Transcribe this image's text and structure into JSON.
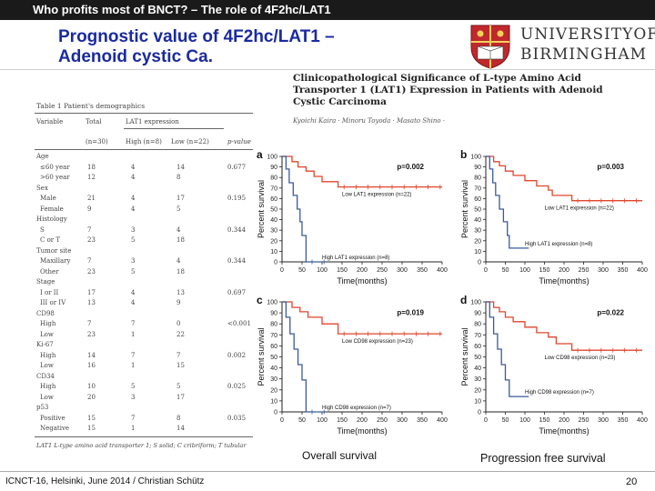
{
  "header": {
    "bar_title": "Who profits most of BNCT? – The role of 4F2hc/LAT1",
    "title_line1": "Prognostic value of 4F2hc/LAT1 –",
    "title_line2": "Adenoid cystic Ca.",
    "university_line1": "UNIVERSITYOF",
    "university_line2": "BIRMINGHAM"
  },
  "paper": {
    "title_line1": "Clinicopathological Significance of L-type Amino Acid",
    "title_line2": "Transporter 1 (LAT1) Expression in Patients with Adenoid",
    "title_line3": "Cystic Carcinoma",
    "authors": "Kyoichi Kaira · Minoru Toyoda · Masato Shino ·"
  },
  "table": {
    "title": "Table 1 Patient's demographics",
    "headers": [
      "Variable",
      "Total",
      "LAT1 expression",
      "p-value"
    ],
    "subheaders": [
      "(n=30)",
      "High (n=8)",
      "Low (n=22)"
    ],
    "rows": [
      {
        "v": "Age",
        "t": "",
        "h": "",
        "l": "",
        "p": ""
      },
      {
        "v": "≤60 year",
        "t": "18",
        "h": "4",
        "l": "14",
        "p": "0.677"
      },
      {
        "v": ">60 year",
        "t": "12",
        "h": "4",
        "l": "8",
        "p": ""
      },
      {
        "v": "Sex",
        "t": "",
        "h": "",
        "l": "",
        "p": ""
      },
      {
        "v": "Male",
        "t": "21",
        "h": "4",
        "l": "17",
        "p": "0.195"
      },
      {
        "v": "Female",
        "t": "9",
        "h": "4",
        "l": "5",
        "p": ""
      },
      {
        "v": "Histology",
        "t": "",
        "h": "",
        "l": "",
        "p": ""
      },
      {
        "v": "S",
        "t": "7",
        "h": "3",
        "l": "4",
        "p": "0.344"
      },
      {
        "v": "C or T",
        "t": "23",
        "h": "5",
        "l": "18",
        "p": ""
      },
      {
        "v": "Tumor site",
        "t": "",
        "h": "",
        "l": "",
        "p": ""
      },
      {
        "v": "Maxillary",
        "t": "7",
        "h": "3",
        "l": "4",
        "p": "0.344"
      },
      {
        "v": "Other",
        "t": "23",
        "h": "5",
        "l": "18",
        "p": ""
      },
      {
        "v": "Stage",
        "t": "",
        "h": "",
        "l": "",
        "p": ""
      },
      {
        "v": "I or II",
        "t": "17",
        "h": "4",
        "l": "13",
        "p": "0.697"
      },
      {
        "v": "III or IV",
        "t": "13",
        "h": "4",
        "l": "9",
        "p": ""
      },
      {
        "v": "CD98",
        "t": "",
        "h": "",
        "l": "",
        "p": ""
      },
      {
        "v": "High",
        "t": "7",
        "h": "7",
        "l": "0",
        "p": "<0.001"
      },
      {
        "v": "Low",
        "t": "23",
        "h": "1",
        "l": "22",
        "p": ""
      },
      {
        "v": "Ki-67",
        "t": "",
        "h": "",
        "l": "",
        "p": ""
      },
      {
        "v": "High",
        "t": "14",
        "h": "7",
        "l": "7",
        "p": "0.002"
      },
      {
        "v": "Low",
        "t": "16",
        "h": "1",
        "l": "15",
        "p": ""
      },
      {
        "v": "CD34",
        "t": "",
        "h": "",
        "l": "",
        "p": ""
      },
      {
        "v": "High",
        "t": "10",
        "h": "5",
        "l": "5",
        "p": "0.025"
      },
      {
        "v": "Low",
        "t": "20",
        "h": "3",
        "l": "17",
        "p": ""
      },
      {
        "v": "p53",
        "t": "",
        "h": "",
        "l": "",
        "p": ""
      },
      {
        "v": "Positive",
        "t": "15",
        "h": "7",
        "l": "8",
        "p": "0.035"
      },
      {
        "v": "Negative",
        "t": "15",
        "h": "1",
        "l": "14",
        "p": ""
      }
    ],
    "footnote": "LAT1 L-type amino acid transporter 1; S solid; C cribriform; T tubular"
  },
  "labels": {
    "overall": "Overall survival",
    "progression": "Progression free survival"
  },
  "footer": {
    "text": "ICNCT-16, Helsinki, June 2014 / Christian Schütz",
    "page": "20"
  },
  "colors": {
    "title_blue": "#1a2aa0",
    "low_curve": "#e0452c",
    "high_curve": "#3a5a9a",
    "crest_red": "#c0282d"
  },
  "chart_data": [
    {
      "type": "line",
      "panel": "a",
      "xlabel": "Time(months)",
      "ylabel": "Percent survival",
      "xlim": [
        0,
        400
      ],
      "ylim": [
        0,
        100
      ],
      "xticks": [
        0,
        50,
        100,
        150,
        200,
        250,
        300,
        350,
        400
      ],
      "yticks": [
        0,
        10,
        20,
        30,
        40,
        50,
        60,
        70,
        80,
        90,
        100
      ],
      "pvalue": "p=0.002",
      "series": [
        {
          "name": "Low LAT1 expression (n=22)",
          "points": [
            [
              0,
              100
            ],
            [
              25,
              100
            ],
            [
              25,
              95
            ],
            [
              40,
              95
            ],
            [
              40,
              90
            ],
            [
              60,
              90
            ],
            [
              60,
              86
            ],
            [
              80,
              86
            ],
            [
              80,
              81
            ],
            [
              100,
              81
            ],
            [
              100,
              76
            ],
            [
              140,
              76
            ],
            [
              140,
              71
            ],
            [
              400,
              71
            ]
          ]
        },
        {
          "name": "High LAT1 expression (n=8)",
          "points": [
            [
              0,
              100
            ],
            [
              10,
              100
            ],
            [
              10,
              88
            ],
            [
              18,
              88
            ],
            [
              18,
              75
            ],
            [
              28,
              75
            ],
            [
              28,
              63
            ],
            [
              38,
              63
            ],
            [
              38,
              50
            ],
            [
              45,
              50
            ],
            [
              45,
              38
            ],
            [
              50,
              38
            ],
            [
              50,
              25
            ],
            [
              60,
              25
            ],
            [
              60,
              13
            ],
            [
              60,
              0
            ],
            [
              110,
              0
            ]
          ]
        }
      ]
    },
    {
      "type": "line",
      "panel": "b",
      "xlabel": "Time(months)",
      "ylabel": "Percent survival",
      "xlim": [
        0,
        400
      ],
      "ylim": [
        0,
        100
      ],
      "xticks": [
        0,
        50,
        100,
        150,
        200,
        250,
        300,
        350,
        400
      ],
      "yticks": [
        0,
        10,
        20,
        30,
        40,
        50,
        60,
        70,
        80,
        90,
        100
      ],
      "pvalue": "p=0.003",
      "series": [
        {
          "name": "Low LAT1 expression (n=22)",
          "points": [
            [
              0,
              100
            ],
            [
              20,
              100
            ],
            [
              20,
              95
            ],
            [
              35,
              95
            ],
            [
              35,
              91
            ],
            [
              50,
              91
            ],
            [
              50,
              86
            ],
            [
              70,
              86
            ],
            [
              70,
              82
            ],
            [
              100,
              82
            ],
            [
              100,
              77
            ],
            [
              130,
              77
            ],
            [
              130,
              72
            ],
            [
              160,
              72
            ],
            [
              160,
              68
            ],
            [
              170,
              68
            ],
            [
              170,
              63
            ],
            [
              220,
              63
            ],
            [
              220,
              58
            ],
            [
              400,
              58
            ]
          ]
        },
        {
          "name": "High LAT1 expression (n=8)",
          "points": [
            [
              0,
              100
            ],
            [
              10,
              100
            ],
            [
              10,
              88
            ],
            [
              18,
              88
            ],
            [
              18,
              75
            ],
            [
              25,
              75
            ],
            [
              25,
              63
            ],
            [
              35,
              63
            ],
            [
              35,
              50
            ],
            [
              45,
              50
            ],
            [
              45,
              38
            ],
            [
              55,
              38
            ],
            [
              55,
              25
            ],
            [
              60,
              25
            ],
            [
              60,
              13
            ],
            [
              110,
              13
            ],
            [
              110,
              13
            ]
          ]
        }
      ]
    },
    {
      "type": "line",
      "panel": "c",
      "xlabel": "Time(months)",
      "ylabel": "Percent survival",
      "xlim": [
        0,
        400
      ],
      "ylim": [
        0,
        100
      ],
      "xticks": [
        0,
        50,
        100,
        150,
        200,
        250,
        300,
        350,
        400
      ],
      "yticks": [
        0,
        10,
        20,
        30,
        40,
        50,
        60,
        70,
        80,
        90,
        100
      ],
      "pvalue": "p=0.019",
      "series": [
        {
          "name": "Low CD98 expression (n=23)",
          "points": [
            [
              0,
              100
            ],
            [
              25,
              100
            ],
            [
              25,
              95
            ],
            [
              45,
              95
            ],
            [
              45,
              91
            ],
            [
              65,
              91
            ],
            [
              65,
              86
            ],
            [
              100,
              86
            ],
            [
              100,
              80
            ],
            [
              140,
              80
            ],
            [
              140,
              71
            ],
            [
              400,
              71
            ]
          ]
        },
        {
          "name": "High CD98 expression (n=7)",
          "points": [
            [
              0,
              100
            ],
            [
              10,
              100
            ],
            [
              10,
              86
            ],
            [
              20,
              86
            ],
            [
              20,
              71
            ],
            [
              30,
              71
            ],
            [
              30,
              57
            ],
            [
              40,
              57
            ],
            [
              40,
              43
            ],
            [
              50,
              43
            ],
            [
              50,
              29
            ],
            [
              60,
              29
            ],
            [
              60,
              15
            ],
            [
              60,
              0
            ],
            [
              110,
              0
            ]
          ]
        }
      ]
    },
    {
      "type": "line",
      "panel": "d",
      "xlabel": "Time(months)",
      "ylabel": "Percent survival",
      "xlim": [
        0,
        400
      ],
      "ylim": [
        0,
        100
      ],
      "xticks": [
        0,
        50,
        100,
        150,
        200,
        250,
        300,
        350,
        400
      ],
      "yticks": [
        0,
        10,
        20,
        30,
        40,
        50,
        60,
        70,
        80,
        90,
        100
      ],
      "pvalue": "p=0.022",
      "series": [
        {
          "name": "Low CD98 expression (n=23)",
          "points": [
            [
              0,
              100
            ],
            [
              20,
              100
            ],
            [
              20,
              95
            ],
            [
              35,
              95
            ],
            [
              35,
              91
            ],
            [
              50,
              91
            ],
            [
              50,
              86
            ],
            [
              70,
              86
            ],
            [
              70,
              82
            ],
            [
              100,
              82
            ],
            [
              100,
              77
            ],
            [
              130,
              77
            ],
            [
              130,
              72
            ],
            [
              160,
              72
            ],
            [
              160,
              68
            ],
            [
              180,
              68
            ],
            [
              180,
              62
            ],
            [
              220,
              62
            ],
            [
              220,
              56
            ],
            [
              400,
              56
            ]
          ]
        },
        {
          "name": "High CD98 expression (n=7)",
          "points": [
            [
              0,
              100
            ],
            [
              10,
              100
            ],
            [
              10,
              86
            ],
            [
              20,
              86
            ],
            [
              20,
              71
            ],
            [
              30,
              71
            ],
            [
              30,
              57
            ],
            [
              40,
              57
            ],
            [
              40,
              43
            ],
            [
              50,
              43
            ],
            [
              50,
              29
            ],
            [
              60,
              29
            ],
            [
              60,
              14
            ],
            [
              110,
              14
            ],
            [
              110,
              14
            ]
          ]
        }
      ]
    }
  ]
}
